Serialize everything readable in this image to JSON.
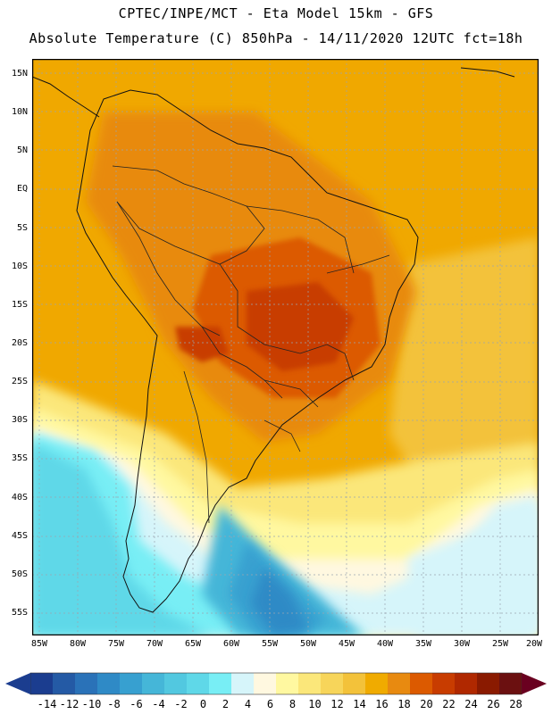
{
  "header": {
    "line1": "CPTEC/INPE/MCT -  Eta Model 15km - GFS",
    "line2": "Absolute Temperature (C) 850hPa - 14/11/2020 12UTC fct=18h"
  },
  "map": {
    "region": "South America",
    "lat_labels": [
      "15N",
      "10N",
      "5N",
      "EQ",
      "5S",
      "10S",
      "15S",
      "20S",
      "25S",
      "30S",
      "35S",
      "40S",
      "45S",
      "50S",
      "55S"
    ],
    "lon_labels": [
      "85W",
      "80W",
      "75W",
      "70W",
      "65W",
      "60W",
      "55W",
      "50W",
      "45W",
      "40W",
      "35W",
      "30W",
      "25W",
      "20W"
    ],
    "dominant_color": "#f0a800",
    "hot_color": "#d05000",
    "cold_color": "#2090d0"
  },
  "colorbar": {
    "labels": [
      "-14",
      "-12",
      "-10",
      "-8",
      "-6",
      "-4",
      "-2",
      "0",
      "2",
      "4",
      "6",
      "8",
      "10",
      "12",
      "14",
      "16",
      "18",
      "20",
      "22",
      "24",
      "26",
      "28"
    ],
    "colors": [
      "#1b3d8f",
      "#245aa5",
      "#2a72b8",
      "#2f8ac6",
      "#37a0d0",
      "#45b6d8",
      "#52c8e0",
      "#5fd8e8",
      "#78eef5",
      "#d6f5fa",
      "#fff8e0",
      "#fff8a0",
      "#fbe77a",
      "#f7d55a",
      "#f3c23a",
      "#f0ab00",
      "#e88a10",
      "#dc5a00",
      "#c83c00",
      "#b02800",
      "#8a1a00",
      "#6b1010"
    ],
    "low_arrow_color": "#1b3d8f",
    "high_arrow_color": "#6a0020"
  }
}
